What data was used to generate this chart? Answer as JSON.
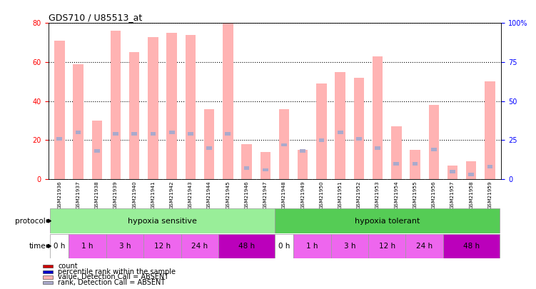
{
  "title": "GDS710 / U85513_at",
  "samples": [
    "GSM21936",
    "GSM21937",
    "GSM21938",
    "GSM21939",
    "GSM21940",
    "GSM21941",
    "GSM21942",
    "GSM21943",
    "GSM21944",
    "GSM21945",
    "GSM21946",
    "GSM21947",
    "GSM21948",
    "GSM21949",
    "GSM21950",
    "GSM21951",
    "GSM21952",
    "GSM21953",
    "GSM21954",
    "GSM21955",
    "GSM21956",
    "GSM21957",
    "GSM21958",
    "GSM21959"
  ],
  "values": [
    71,
    59,
    30,
    76,
    65,
    73,
    75,
    74,
    36,
    80,
    18,
    14,
    36,
    15,
    49,
    55,
    52,
    63,
    27,
    15,
    38,
    7,
    9,
    50
  ],
  "ranks": [
    26,
    30,
    18,
    29,
    29,
    29,
    30,
    29,
    20,
    29,
    7,
    6,
    22,
    18,
    25,
    30,
    26,
    20,
    10,
    10,
    19,
    5,
    3,
    8
  ],
  "ylim_left": [
    0,
    80
  ],
  "ylim_right": [
    0,
    100
  ],
  "yticks_left": [
    0,
    20,
    40,
    60,
    80
  ],
  "yticks_right": [
    0,
    25,
    50,
    75,
    100
  ],
  "bar_color": "#FFB3B3",
  "rank_color": "#AAAACC",
  "bar_width": 0.55,
  "rank_bar_width": 0.3,
  "protocol_colors": [
    "#99EE99",
    "#55CC55"
  ],
  "protocol_labels": [
    "hypoxia sensitive",
    "hypoxia tolerant"
  ],
  "protocol_ranges": [
    [
      0,
      11
    ],
    [
      12,
      23
    ]
  ],
  "time_groups": [
    {
      "label": "0 h",
      "start": 0,
      "end": 0,
      "color": "#FFFFFF"
    },
    {
      "label": "1 h",
      "start": 1,
      "end": 2,
      "color": "#EE66EE"
    },
    {
      "label": "3 h",
      "start": 3,
      "end": 4,
      "color": "#EE66EE"
    },
    {
      "label": "12 h",
      "start": 5,
      "end": 6,
      "color": "#EE66EE"
    },
    {
      "label": "24 h",
      "start": 7,
      "end": 8,
      "color": "#EE66EE"
    },
    {
      "label": "48 h",
      "start": 9,
      "end": 11,
      "color": "#BB00BB"
    },
    {
      "label": "0 h",
      "start": 12,
      "end": 12,
      "color": "#FFFFFF"
    },
    {
      "label": "1 h",
      "start": 13,
      "end": 14,
      "color": "#EE66EE"
    },
    {
      "label": "3 h",
      "start": 15,
      "end": 16,
      "color": "#EE66EE"
    },
    {
      "label": "12 h",
      "start": 17,
      "end": 18,
      "color": "#EE66EE"
    },
    {
      "label": "24 h",
      "start": 19,
      "end": 20,
      "color": "#EE66EE"
    },
    {
      "label": "48 h",
      "start": 21,
      "end": 23,
      "color": "#BB00BB"
    }
  ],
  "legend_colors": [
    "#CC0000",
    "#0000CC",
    "#FFB3B3",
    "#AAAACC"
  ],
  "legend_labels": [
    "count",
    "percentile rank within the sample",
    "value, Detection Call = ABSENT",
    "rank, Detection Call = ABSENT"
  ],
  "xtick_bg": "#CCCCCC",
  "right_axis_label_100": "100%"
}
